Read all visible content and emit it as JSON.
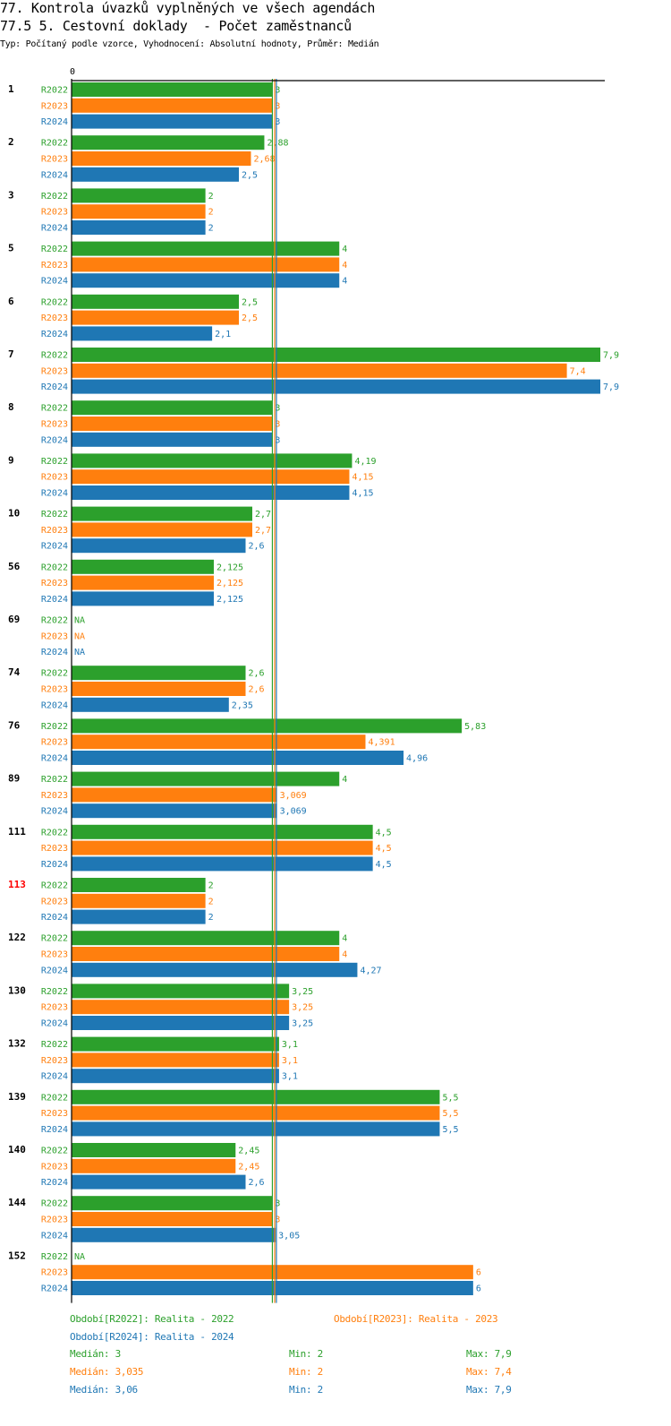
{
  "title_line1": "77. Kontrola úvazků vyplněných ve všech agendách",
  "title_line2": "77.5 5. Cestovní doklady  - Počet zaměstnanců",
  "subtitle": "Typ: Počítaný podle vzorce, Vyhodnocení: Absolutní hodnoty, Průměr: Medián",
  "colors": {
    "R2022": "#2ca02c",
    "R2023": "#ff7f0e",
    "R2024": "#1f77b4",
    "highlight": "#ff0000"
  },
  "chart_data": {
    "type": "bar",
    "orientation": "horizontal",
    "xlim": [
      0,
      7.9
    ],
    "zero_label": "0",
    "na_label": "NA",
    "series_names": [
      "R2022",
      "R2023",
      "R2024"
    ],
    "categories": [
      {
        "label": "1",
        "highlight": false,
        "values": [
          3,
          3,
          3
        ],
        "labels": [
          "3",
          "3",
          "3"
        ]
      },
      {
        "label": "2",
        "highlight": false,
        "values": [
          2.88,
          2.68,
          2.5
        ],
        "labels": [
          "2,88",
          "2,68",
          "2,5"
        ]
      },
      {
        "label": "3",
        "highlight": false,
        "values": [
          2,
          2,
          2
        ],
        "labels": [
          "2",
          "2",
          "2"
        ]
      },
      {
        "label": "5",
        "highlight": false,
        "values": [
          4,
          4,
          4
        ],
        "labels": [
          "4",
          "4",
          "4"
        ]
      },
      {
        "label": "6",
        "highlight": false,
        "values": [
          2.5,
          2.5,
          2.1
        ],
        "labels": [
          "2,5",
          "2,5",
          "2,1"
        ]
      },
      {
        "label": "7",
        "highlight": false,
        "values": [
          7.9,
          7.4,
          7.9
        ],
        "labels": [
          "7,9",
          "7,4",
          "7,9"
        ]
      },
      {
        "label": "8",
        "highlight": false,
        "values": [
          3,
          3,
          3
        ],
        "labels": [
          "3",
          "3",
          "3"
        ]
      },
      {
        "label": "9",
        "highlight": false,
        "values": [
          4.19,
          4.15,
          4.15
        ],
        "labels": [
          "4,19",
          "4,15",
          "4,15"
        ]
      },
      {
        "label": "10",
        "highlight": false,
        "values": [
          2.7,
          2.7,
          2.6
        ],
        "labels": [
          "2,7",
          "2,7",
          "2,6"
        ]
      },
      {
        "label": "56",
        "highlight": false,
        "values": [
          2.125,
          2.125,
          2.125
        ],
        "labels": [
          "2,125",
          "2,125",
          "2,125"
        ]
      },
      {
        "label": "69",
        "highlight": false,
        "values": [
          null,
          null,
          null
        ],
        "labels": [
          "NA",
          "NA",
          "NA"
        ]
      },
      {
        "label": "74",
        "highlight": false,
        "values": [
          2.6,
          2.6,
          2.35
        ],
        "labels": [
          "2,6",
          "2,6",
          "2,35"
        ]
      },
      {
        "label": "76",
        "highlight": false,
        "values": [
          5.83,
          4.391,
          4.96
        ],
        "labels": [
          "5,83",
          "4,391",
          "4,96"
        ]
      },
      {
        "label": "89",
        "highlight": false,
        "values": [
          4,
          3.069,
          3.069
        ],
        "labels": [
          "4",
          "3,069",
          "3,069"
        ]
      },
      {
        "label": "111",
        "highlight": false,
        "values": [
          4.5,
          4.5,
          4.5
        ],
        "labels": [
          "4,5",
          "4,5",
          "4,5"
        ]
      },
      {
        "label": "113",
        "highlight": true,
        "values": [
          2,
          2,
          2
        ],
        "labels": [
          "2",
          "2",
          "2"
        ]
      },
      {
        "label": "122",
        "highlight": false,
        "values": [
          4,
          4,
          4.27
        ],
        "labels": [
          "4",
          "4",
          "4,27"
        ]
      },
      {
        "label": "130",
        "highlight": false,
        "values": [
          3.25,
          3.25,
          3.25
        ],
        "labels": [
          "3,25",
          "3,25",
          "3,25"
        ]
      },
      {
        "label": "132",
        "highlight": false,
        "values": [
          3.1,
          3.1,
          3.1
        ],
        "labels": [
          "3,1",
          "3,1",
          "3,1"
        ]
      },
      {
        "label": "139",
        "highlight": false,
        "values": [
          5.5,
          5.5,
          5.5
        ],
        "labels": [
          "5,5",
          "5,5",
          "5,5"
        ]
      },
      {
        "label": "140",
        "highlight": false,
        "values": [
          2.45,
          2.45,
          2.6
        ],
        "labels": [
          "2,45",
          "2,45",
          "2,6"
        ]
      },
      {
        "label": "144",
        "highlight": false,
        "values": [
          3,
          3,
          3.05
        ],
        "labels": [
          "3",
          "3",
          "3,05"
        ]
      },
      {
        "label": "152",
        "highlight": false,
        "values": [
          null,
          6,
          6
        ],
        "labels": [
          "NA",
          "6",
          "6"
        ]
      }
    ],
    "reference_lines": [
      {
        "series": "R2022",
        "value": 3
      },
      {
        "series": "R2023",
        "value": 3.035
      },
      {
        "series": "R2024",
        "value": 3.06
      }
    ]
  },
  "legend": {
    "period_r2022": "Období[R2022]: Realita - 2022",
    "period_r2023": "Období[R2023]: Realita - 2023",
    "period_r2024": "Období[R2024]: Realita - 2024",
    "stats": [
      {
        "median": "Medián: 3",
        "min": "Min: 2",
        "max": "Max: 7,9"
      },
      {
        "median": "Medián: 3,035",
        "min": "Min: 2",
        "max": "Max: 7,4"
      },
      {
        "median": "Medián: 3,06",
        "min": "Min: 2",
        "max": "Max: 7,9"
      }
    ]
  }
}
